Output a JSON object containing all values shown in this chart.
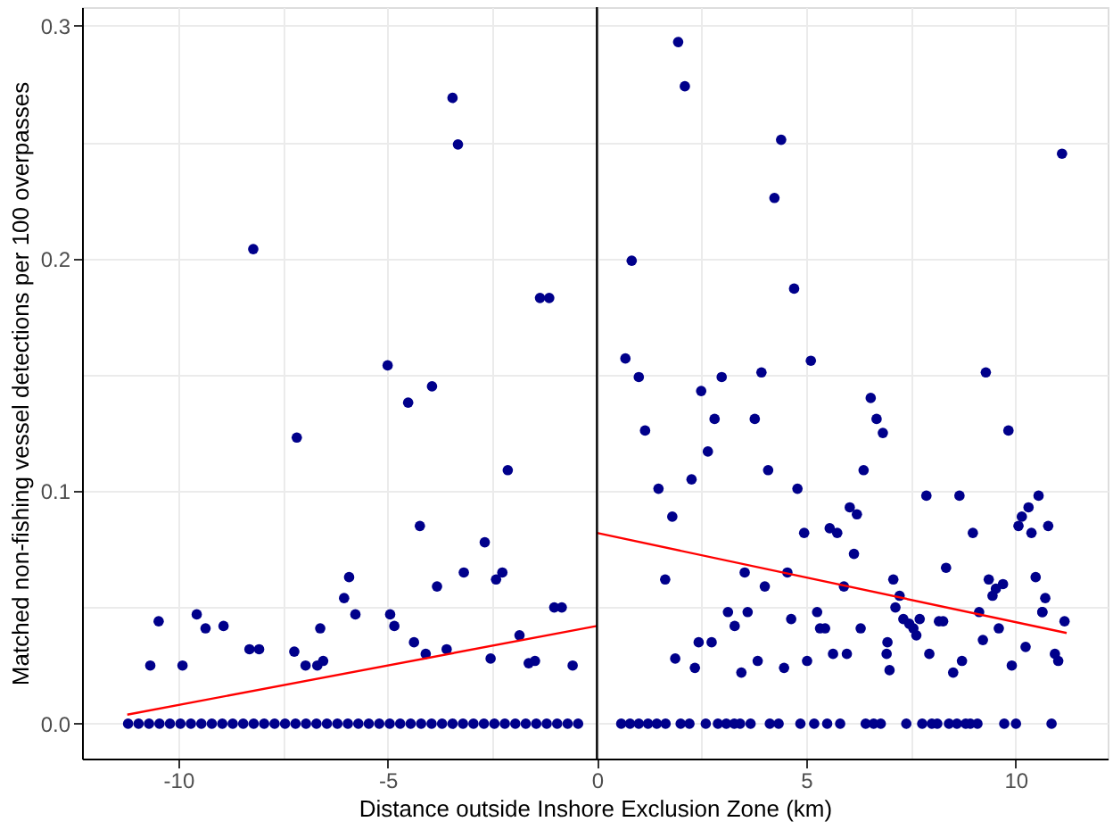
{
  "chart_data": {
    "type": "scatter",
    "xlabel": "Distance outside Inshore Exclusion Zone (km)",
    "ylabel": "Matched non-fishing vessel detections per 100 overpasses",
    "xlim": [
      -12.3,
      12.2
    ],
    "ylim": [
      -0.015,
      0.308
    ],
    "xticks": [
      -10,
      {
        "value": -7.5,
        "label": null
      },
      -5,
      {
        "value": -2.5,
        "label": null
      },
      0,
      {
        "value": 2.5,
        "label": null
      },
      5,
      {
        "value": 7.5,
        "label": null
      },
      10
    ],
    "yticks": [
      {
        "value": 0,
        "label": "0.0"
      },
      {
        "value": 0.05,
        "label": null
      },
      {
        "value": 0.1,
        "label": "0.1"
      },
      {
        "value": 0.15,
        "label": null
      },
      {
        "value": 0.2,
        "label": "0.2"
      },
      {
        "value": 0.25,
        "label": null
      },
      {
        "value": 0.3,
        "label": "0.3"
      }
    ],
    "grid": true,
    "marker": "circle",
    "ref_lines": [
      {
        "axis": "x",
        "value": 0,
        "color": "#000000"
      }
    ],
    "series": [
      {
        "color": "#00008b",
        "x": [
          -11.2,
          -10.95,
          -10.7,
          -10.45,
          -10.2,
          -9.95,
          -9.7,
          -9.45,
          -9.2,
          -8.95,
          -8.7,
          -8.45,
          -8.2,
          -7.95,
          -7.7,
          -7.45,
          -7.2,
          -6.95,
          -6.7,
          -6.45,
          -6.2,
          -5.95,
          -5.7,
          -5.45,
          -5.2,
          -4.95,
          -4.7,
          -4.45,
          -4.2,
          -3.95,
          -3.7,
          -3.45,
          -3.2,
          -2.95,
          -2.7,
          -2.45,
          -2.2,
          -1.95,
          -1.7,
          -1.45,
          -1.2,
          -0.95,
          -0.7,
          -0.45,
          0.58,
          0.79,
          1.0,
          1.22,
          1.43,
          1.64,
          2.0,
          2.21,
          2.6,
          2.89,
          3.09,
          3.28,
          3.42,
          3.67,
          4.13,
          4.34,
          4.86,
          5.19,
          5.5,
          5.81,
          6.42,
          6.61,
          6.78,
          7.39,
          7.77,
          8.0,
          8.13,
          8.41,
          8.6,
          8.81,
          8.92,
          9.09,
          9.73,
          10.01,
          10.86,
          -3.45,
          -3.32,
          -8.21,
          -1.36,
          -1.14,
          -5.0,
          -4.51,
          -3.94,
          -7.17,
          -2.13,
          -4.23,
          -2.68,
          -3.18,
          -2.41,
          -2.26,
          -3.82,
          -5.92,
          -6.04,
          -5.77,
          -10.47,
          -9.56,
          -9.35,
          -8.92,
          -10.67,
          -9.9,
          -8.3,
          -8.07,
          -7.23,
          -6.96,
          -6.68,
          -6.54,
          -6.61,
          -4.94,
          -4.84,
          -4.37,
          -4.09,
          -3.59,
          -2.54,
          -1.85,
          -1.63,
          -1.48,
          -1.02,
          -0.84,
          -0.58,
          1.94,
          2.1,
          4.4,
          4.24,
          11.11,
          0.83,
          4.71,
          0.68,
          1.0,
          3.93,
          5.11,
          2.98,
          2.49,
          1.15,
          2.81,
          3.77,
          2.65,
          6.54,
          6.68,
          6.83,
          9.29,
          9.83,
          4.09,
          6.37,
          1.47,
          2.26,
          4.79,
          1.8,
          7.87,
          8.66,
          6.04,
          6.21,
          4.95,
          5.56,
          5.74,
          8.98,
          10.15,
          10.07,
          10.31,
          10.55,
          10.38,
          10.78,
          6.14,
          1.63,
          3.53,
          4.55,
          4.01,
          5.9,
          7.08,
          8.34,
          9.36,
          9.7,
          9.53,
          9.45,
          10.48,
          10.71,
          10.64,
          7.23,
          7.13,
          3.13,
          3.6,
          3.29,
          5.26,
          5.33,
          5.45,
          4.64,
          6.3,
          7.32,
          7.46,
          7.56,
          7.63,
          7.71,
          8.17,
          8.27,
          9.13,
          9.6,
          9.22,
          10.64,
          11.17,
          1.87,
          2.43,
          2.34,
          2.74,
          3.45,
          3.84,
          4.47,
          5.02,
          5.64,
          5.97,
          6.92,
          6.99,
          6.94,
          7.94,
          8.51,
          8.72,
          9.91,
          10.24,
          10.94,
          11.02
        ],
        "values": [
          0,
          0,
          0,
          0,
          0,
          0,
          0,
          0,
          0,
          0,
          0,
          0,
          0,
          0,
          0,
          0,
          0,
          0,
          0,
          0,
          0,
          0,
          0,
          0,
          0,
          0,
          0,
          0,
          0,
          0,
          0,
          0,
          0,
          0,
          0,
          0,
          0,
          0,
          0,
          0,
          0,
          0,
          0,
          0,
          0,
          0,
          0,
          0,
          0,
          0,
          0,
          0,
          0,
          0,
          0,
          0,
          0,
          0,
          0,
          0,
          0,
          0,
          0,
          0,
          0,
          0,
          0,
          0,
          0,
          0,
          0,
          0,
          0,
          0,
          0,
          0,
          0,
          0,
          0,
          0.269,
          0.249,
          0.204,
          0.183,
          0.183,
          0.154,
          0.138,
          0.145,
          0.123,
          0.109,
          0.085,
          0.078,
          0.065,
          0.062,
          0.065,
          0.059,
          0.063,
          0.054,
          0.047,
          0.044,
          0.047,
          0.041,
          0.042,
          0.025,
          0.025,
          0.032,
          0.032,
          0.031,
          0.025,
          0.025,
          0.027,
          0.041,
          0.047,
          0.042,
          0.035,
          0.03,
          0.032,
          0.028,
          0.038,
          0.026,
          0.027,
          0.05,
          0.05,
          0.025,
          0.293,
          0.274,
          0.251,
          0.226,
          0.245,
          0.199,
          0.187,
          0.157,
          0.149,
          0.151,
          0.156,
          0.149,
          0.143,
          0.126,
          0.131,
          0.131,
          0.117,
          0.14,
          0.131,
          0.125,
          0.151,
          0.126,
          0.109,
          0.109,
          0.101,
          0.105,
          0.101,
          0.089,
          0.098,
          0.098,
          0.093,
          0.09,
          0.082,
          0.084,
          0.082,
          0.082,
          0.089,
          0.085,
          0.093,
          0.098,
          0.082,
          0.085,
          0.073,
          0.062,
          0.065,
          0.065,
          0.059,
          0.059,
          0.062,
          0.067,
          0.062,
          0.06,
          0.058,
          0.055,
          0.063,
          0.054,
          0.048,
          0.055,
          0.05,
          0.048,
          0.048,
          0.042,
          0.048,
          0.041,
          0.041,
          0.045,
          0.041,
          0.045,
          0.043,
          0.041,
          0.038,
          0.045,
          0.044,
          0.044,
          0.048,
          0.041,
          0.036,
          0.048,
          0.044,
          0.028,
          0.035,
          0.024,
          0.035,
          0.022,
          0.027,
          0.024,
          0.027,
          0.03,
          0.03,
          0.03,
          0.023,
          0.035,
          0.03,
          0.022,
          0.027,
          0.025,
          0.033,
          0.03,
          0.027
        ]
      },
      {
        "type": "line",
        "color": "#ff0000",
        "marker": "none",
        "x": [
          -11.22,
          0
        ],
        "values": [
          0.0039,
          0.042
        ]
      },
      {
        "type": "line",
        "color": "#ff0000",
        "marker": "none",
        "x": [
          0,
          11.22
        ],
        "values": [
          0.082,
          0.039
        ]
      }
    ]
  }
}
